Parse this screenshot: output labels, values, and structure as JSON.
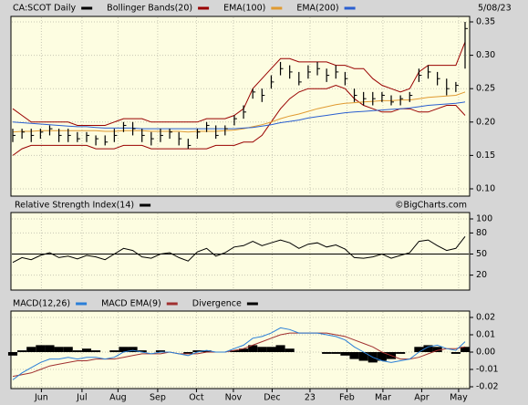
{
  "header": {
    "date": "5/08/23"
  },
  "chart_data": [
    {
      "type": "ohlc",
      "name": "CA:SCOT Daily",
      "color": "#000000",
      "high": [
        0.19,
        0.19,
        0.19,
        0.19,
        0.195,
        0.19,
        0.19,
        0.185,
        0.185,
        0.18,
        0.18,
        0.19,
        0.2,
        0.2,
        0.19,
        0.185,
        0.19,
        0.19,
        0.185,
        0.175,
        0.19,
        0.2,
        0.195,
        0.195,
        0.21,
        0.225,
        0.25,
        0.25,
        0.27,
        0.29,
        0.285,
        0.275,
        0.285,
        0.29,
        0.28,
        0.285,
        0.275,
        0.25,
        0.245,
        0.245,
        0.245,
        0.24,
        0.24,
        0.245,
        0.28,
        0.285,
        0.275,
        0.265,
        0.26,
        0.35
      ],
      "low": [
        0.17,
        0.175,
        0.17,
        0.175,
        0.18,
        0.17,
        0.17,
        0.17,
        0.17,
        0.165,
        0.165,
        0.17,
        0.185,
        0.18,
        0.17,
        0.165,
        0.17,
        0.175,
        0.165,
        0.16,
        0.175,
        0.185,
        0.175,
        0.18,
        0.195,
        0.205,
        0.235,
        0.23,
        0.25,
        0.27,
        0.265,
        0.255,
        0.265,
        0.27,
        0.26,
        0.265,
        0.255,
        0.23,
        0.225,
        0.225,
        0.23,
        0.225,
        0.225,
        0.23,
        0.26,
        0.265,
        0.255,
        0.24,
        0.245,
        0.28
      ],
      "close": [
        0.18,
        0.185,
        0.18,
        0.185,
        0.19,
        0.18,
        0.18,
        0.175,
        0.18,
        0.175,
        0.17,
        0.18,
        0.195,
        0.19,
        0.18,
        0.175,
        0.18,
        0.185,
        0.175,
        0.165,
        0.185,
        0.195,
        0.18,
        0.19,
        0.205,
        0.215,
        0.245,
        0.24,
        0.26,
        0.28,
        0.275,
        0.26,
        0.275,
        0.28,
        0.27,
        0.275,
        0.265,
        0.24,
        0.235,
        0.235,
        0.24,
        0.23,
        0.235,
        0.24,
        0.27,
        0.275,
        0.265,
        0.25,
        0.255,
        0.34
      ],
      "series": [
        {
          "name": "Bollinger Bands(20)",
          "color": "#990000",
          "upper": [
            0.22,
            0.21,
            0.2,
            0.2,
            0.2,
            0.2,
            0.2,
            0.195,
            0.195,
            0.195,
            0.195,
            0.2,
            0.205,
            0.205,
            0.205,
            0.2,
            0.2,
            0.2,
            0.2,
            0.2,
            0.2,
            0.205,
            0.205,
            0.205,
            0.21,
            0.22,
            0.25,
            0.265,
            0.28,
            0.295,
            0.295,
            0.29,
            0.29,
            0.29,
            0.29,
            0.285,
            0.285,
            0.28,
            0.28,
            0.265,
            0.255,
            0.25,
            0.245,
            0.25,
            0.275,
            0.285,
            0.285,
            0.285,
            0.285,
            0.32
          ],
          "lower": [
            0.15,
            0.16,
            0.165,
            0.165,
            0.165,
            0.165,
            0.165,
            0.165,
            0.165,
            0.16,
            0.16,
            0.16,
            0.165,
            0.165,
            0.165,
            0.16,
            0.16,
            0.16,
            0.16,
            0.16,
            0.16,
            0.16,
            0.165,
            0.165,
            0.165,
            0.17,
            0.17,
            0.18,
            0.2,
            0.22,
            0.235,
            0.245,
            0.25,
            0.25,
            0.25,
            0.255,
            0.25,
            0.235,
            0.225,
            0.22,
            0.215,
            0.215,
            0.22,
            0.22,
            0.215,
            0.215,
            0.22,
            0.225,
            0.225,
            0.21
          ]
        },
        {
          "name": "EMA(100)",
          "color": "#e09a30",
          "values": [
            0.185,
            0.186,
            0.186,
            0.187,
            0.187,
            0.187,
            0.187,
            0.187,
            0.187,
            0.187,
            0.186,
            0.186,
            0.187,
            0.187,
            0.187,
            0.186,
            0.186,
            0.186,
            0.186,
            0.185,
            0.186,
            0.186,
            0.186,
            0.187,
            0.188,
            0.19,
            0.193,
            0.196,
            0.2,
            0.205,
            0.209,
            0.212,
            0.216,
            0.22,
            0.223,
            0.226,
            0.228,
            0.229,
            0.23,
            0.231,
            0.232,
            0.232,
            0.233,
            0.233,
            0.235,
            0.237,
            0.238,
            0.239,
            0.24,
            0.245
          ]
        },
        {
          "name": "EMA(200)",
          "color": "#2a5fd0",
          "values": [
            0.2,
            0.199,
            0.198,
            0.197,
            0.196,
            0.195,
            0.194,
            0.193,
            0.193,
            0.192,
            0.191,
            0.191,
            0.191,
            0.191,
            0.19,
            0.19,
            0.19,
            0.19,
            0.19,
            0.19,
            0.19,
            0.19,
            0.19,
            0.19,
            0.19,
            0.191,
            0.192,
            0.194,
            0.196,
            0.199,
            0.201,
            0.203,
            0.206,
            0.208,
            0.21,
            0.212,
            0.214,
            0.215,
            0.216,
            0.217,
            0.218,
            0.219,
            0.22,
            0.221,
            0.223,
            0.225,
            0.226,
            0.227,
            0.228,
            0.23
          ]
        }
      ],
      "ylim": [
        0.1,
        0.35
      ],
      "yticks": [
        {
          "value": 0.1,
          "label": "0.10"
        },
        0.15,
        {
          "value": 0.2,
          "label": "0.20"
        },
        0.25,
        {
          "value": 0.3,
          "label": "0.30"
        },
        0.35
      ],
      "grid": true
    },
    {
      "type": "line",
      "title": "Relative Strength Index(14)",
      "source": "©BigCharts.com",
      "series": [
        {
          "color": "#000000",
          "values": [
            38,
            45,
            42,
            48,
            52,
            45,
            47,
            43,
            48,
            46,
            42,
            50,
            58,
            55,
            46,
            44,
            50,
            52,
            45,
            40,
            53,
            58,
            47,
            52,
            60,
            62,
            68,
            62,
            66,
            70,
            66,
            58,
            64,
            66,
            60,
            63,
            57,
            45,
            44,
            46,
            50,
            44,
            48,
            52,
            68,
            70,
            62,
            55,
            58,
            75
          ]
        }
      ],
      "reference": 50,
      "ylim": [
        0,
        100
      ],
      "yticks": [
        20,
        50,
        80,
        100
      ],
      "grid": true
    },
    {
      "type": "macd",
      "series": [
        {
          "name": "MACD(12,26)",
          "color": "#2a7fd8",
          "values": [
            -0.016,
            -0.012,
            -0.009,
            -0.006,
            -0.004,
            -0.004,
            -0.003,
            -0.004,
            -0.003,
            -0.003,
            -0.004,
            -0.003,
            0,
            0.001,
            0,
            -0.001,
            0,
            0,
            -0.001,
            -0.002,
            0,
            0.001,
            0,
            0,
            0.002,
            0.004,
            0.008,
            0.009,
            0.011,
            0.014,
            0.013,
            0.011,
            0.011,
            0.011,
            0.01,
            0.009,
            0.007,
            0.003,
            0,
            -0.003,
            -0.005,
            -0.006,
            -0.005,
            -0.004,
            0,
            0.003,
            0.004,
            0.002,
            0.001,
            0.006
          ]
        },
        {
          "name": "MACD EMA(9)",
          "color": "#a03030",
          "values": [
            -0.014,
            -0.013,
            -0.012,
            -0.01,
            -0.008,
            -0.007,
            -0.006,
            -0.005,
            -0.005,
            -0.004,
            -0.004,
            -0.004,
            -0.003,
            -0.002,
            -0.001,
            -0.001,
            -0.001,
            0,
            -0.001,
            -0.001,
            -0.001,
            0,
            0,
            0,
            0.001,
            0.002,
            0.004,
            0.006,
            0.008,
            0.01,
            0.011,
            0.011,
            0.011,
            0.011,
            0.011,
            0.01,
            0.009,
            0.007,
            0.005,
            0.003,
            0,
            -0.002,
            -0.004,
            -0.004,
            -0.003,
            -0.001,
            0.001,
            0.002,
            0.002,
            0.003
          ]
        },
        {
          "name": "Divergence",
          "color": "#000000",
          "values": [
            -0.002,
            0.001,
            0.003,
            0.004,
            0.004,
            0.003,
            0.003,
            0.001,
            0.002,
            0.001,
            0,
            0.001,
            0.003,
            0.003,
            0.001,
            0,
            0.001,
            0,
            0,
            -0.001,
            0.001,
            0.001,
            0,
            0,
            0.001,
            0.002,
            0.004,
            0.003,
            0.003,
            0.004,
            0.002,
            0,
            0,
            0,
            -0.001,
            -0.001,
            -0.002,
            -0.004,
            -0.005,
            -0.006,
            -0.005,
            -0.004,
            -0.001,
            0,
            0.003,
            0.004,
            0.003,
            0,
            -0.001,
            0.003
          ]
        }
      ],
      "ylim": [
        -0.02,
        0.02
      ],
      "yticks": [
        -0.02,
        -0.01,
        {
          "value": 0,
          "label": "0.00"
        },
        0.01,
        0.02
      ],
      "xticks": [
        {
          "value": 3.1,
          "label": "Jun"
        },
        {
          "value": 7.5,
          "label": "Jul"
        },
        {
          "value": 11.4,
          "label": "Aug"
        },
        {
          "value": 15.7,
          "label": "Sep"
        },
        {
          "value": 19.9,
          "label": "Oct"
        },
        {
          "value": 23.9,
          "label": "Nov"
        },
        {
          "value": 28.1,
          "label": "Dec"
        },
        {
          "value": 32.2,
          "label": "23"
        },
        {
          "value": 36.2,
          "label": "Feb"
        },
        {
          "value": 40.1,
          "label": "Mar"
        },
        {
          "value": 44.3,
          "label": "Apr"
        },
        {
          "value": 48.3,
          "label": "May"
        }
      ],
      "grid": true
    }
  ]
}
